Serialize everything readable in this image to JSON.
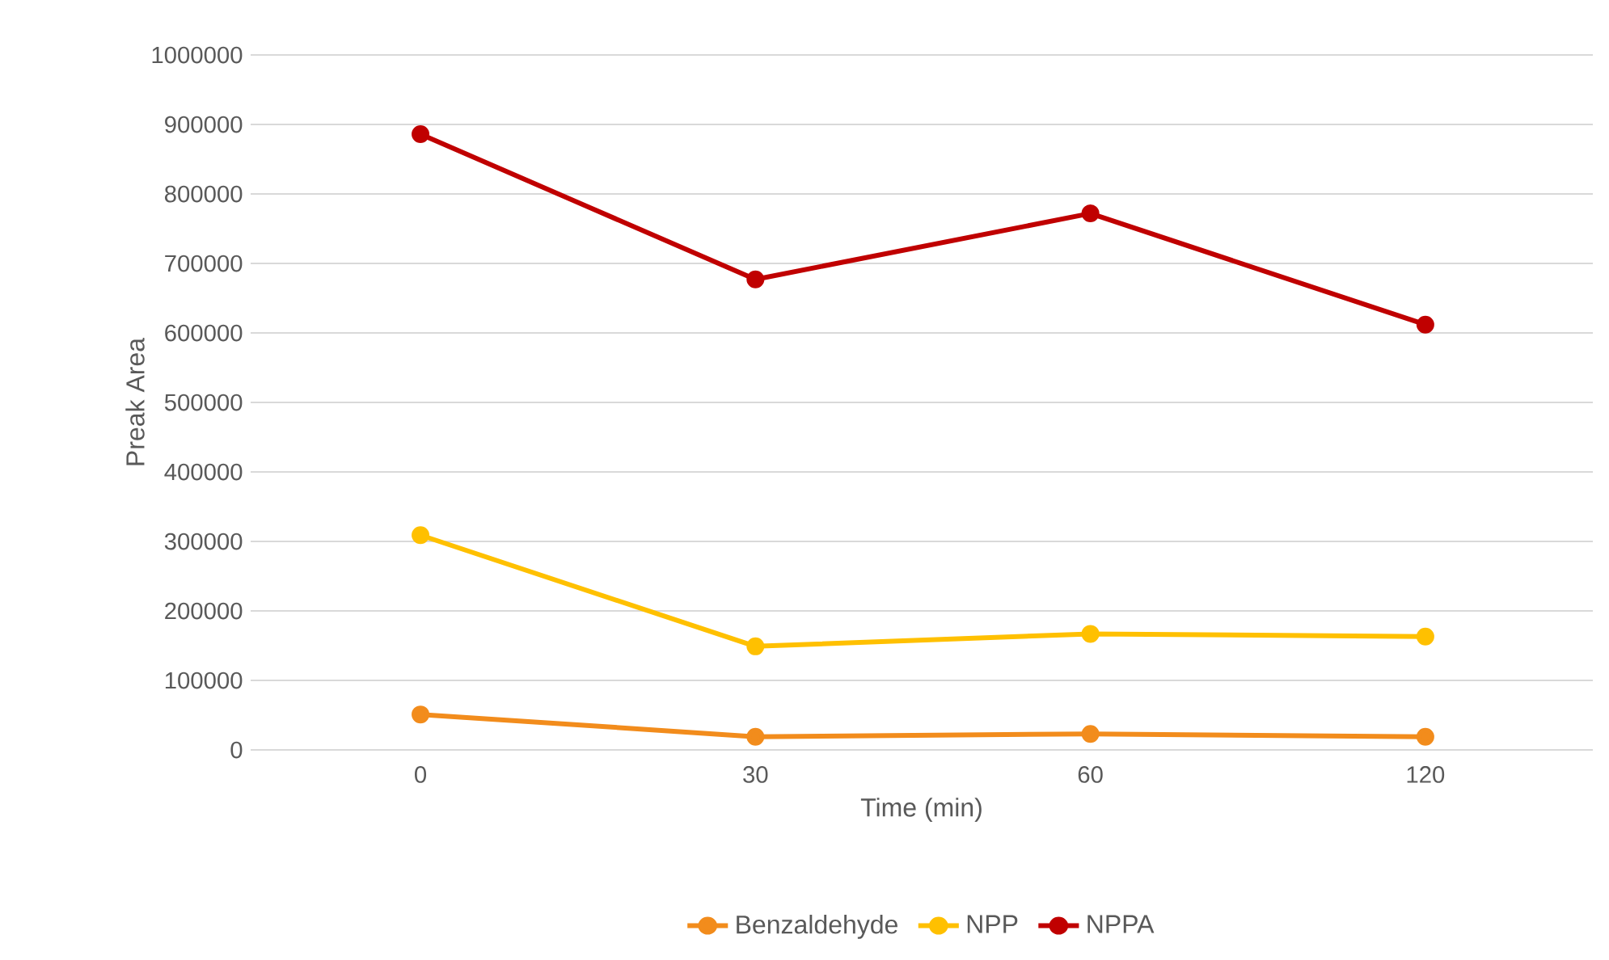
{
  "chart_data": {
    "type": "line",
    "xlabel": "Time (min)",
    "ylabel": "Preak Area",
    "categories": [
      "0",
      "30",
      "60",
      "120"
    ],
    "series": [
      {
        "name": "Benzaldehyde",
        "color": "#f28c1c",
        "values": [
          51000,
          19000,
          23000,
          19000
        ]
      },
      {
        "name": "NPP",
        "color": "#ffc000",
        "values": [
          309000,
          149000,
          167000,
          163000
        ]
      },
      {
        "name": "NPPA",
        "color": "#c00000",
        "values": [
          886000,
          677000,
          772000,
          612000
        ]
      }
    ],
    "ylim": [
      0,
      1000000
    ],
    "yticks": [
      0,
      100000,
      200000,
      300000,
      400000,
      500000,
      600000,
      700000,
      800000,
      900000,
      1000000
    ],
    "grid": "y",
    "legend": "bottom",
    "marker": "circle",
    "line_style": "solid"
  }
}
